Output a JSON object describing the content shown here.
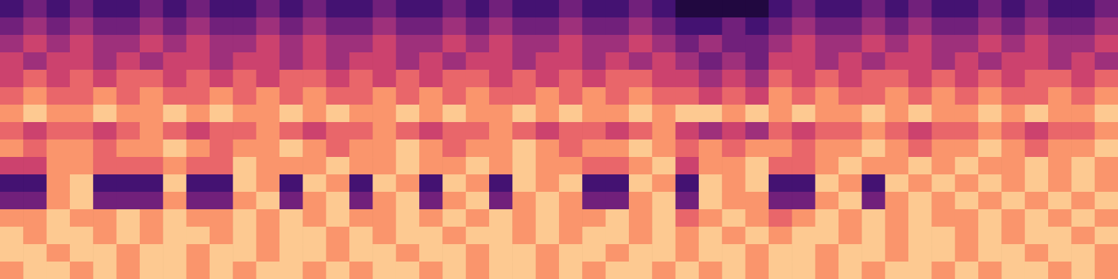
{
  "chart_data": {
    "type": "heatmap",
    "tick_labels": false,
    "xlim": [
      0,
      48
    ],
    "ylim": [
      0,
      16
    ],
    "zlim": [
      0,
      9
    ],
    "cells": [
      [
        2,
        3,
        2,
        3,
        2,
        2,
        3,
        2,
        3,
        2,
        2,
        3,
        2,
        3,
        2,
        2,
        3,
        2,
        2,
        3,
        2,
        3,
        2,
        2,
        3,
        2,
        2,
        3,
        2,
        1,
        1,
        1,
        1,
        2,
        3,
        2,
        2,
        3,
        2,
        3,
        2,
        2,
        3,
        2,
        3,
        2,
        2,
        3
      ],
      [
        3,
        4,
        3,
        4,
        3,
        3,
        4,
        3,
        4,
        3,
        3,
        4,
        3,
        4,
        3,
        3,
        4,
        3,
        3,
        4,
        3,
        4,
        3,
        3,
        4,
        3,
        3,
        4,
        3,
        2,
        2,
        3,
        2,
        3,
        4,
        3,
        3,
        4,
        3,
        4,
        3,
        3,
        4,
        3,
        4,
        3,
        3,
        4
      ],
      [
        4,
        5,
        4,
        5,
        4,
        4,
        5,
        4,
        5,
        4,
        4,
        5,
        4,
        5,
        4,
        4,
        5,
        4,
        4,
        5,
        4,
        5,
        4,
        4,
        5,
        4,
        4,
        5,
        4,
        3,
        4,
        3,
        3,
        4,
        5,
        4,
        4,
        5,
        4,
        5,
        4,
        4,
        5,
        4,
        5,
        4,
        4,
        5
      ],
      [
        5,
        4,
        5,
        5,
        4,
        5,
        4,
        5,
        5,
        4,
        5,
        5,
        4,
        5,
        4,
        5,
        5,
        4,
        5,
        4,
        5,
        5,
        4,
        5,
        5,
        4,
        5,
        4,
        5,
        4,
        3,
        4,
        3,
        5,
        5,
        4,
        5,
        4,
        5,
        5,
        4,
        5,
        4,
        5,
        5,
        4,
        5,
        4
      ],
      [
        5,
        6,
        5,
        6,
        5,
        6,
        6,
        5,
        6,
        5,
        6,
        5,
        6,
        6,
        5,
        6,
        5,
        6,
        5,
        6,
        6,
        5,
        6,
        5,
        6,
        5,
        6,
        6,
        5,
        5,
        4,
        5,
        4,
        6,
        5,
        6,
        5,
        6,
        6,
        5,
        6,
        5,
        6,
        5,
        6,
        6,
        5,
        6
      ],
      [
        6,
        7,
        6,
        6,
        7,
        6,
        7,
        6,
        6,
        7,
        6,
        7,
        6,
        7,
        6,
        6,
        7,
        6,
        7,
        6,
        7,
        6,
        6,
        7,
        6,
        7,
        6,
        7,
        6,
        6,
        5,
        6,
        5,
        7,
        6,
        7,
        6,
        6,
        7,
        6,
        7,
        6,
        7,
        6,
        6,
        7,
        6,
        7
      ],
      [
        7,
        8,
        7,
        7,
        8,
        7,
        7,
        8,
        7,
        8,
        7,
        7,
        8,
        7,
        8,
        7,
        7,
        8,
        7,
        8,
        7,
        7,
        8,
        7,
        8,
        7,
        7,
        8,
        7,
        8,
        8,
        7,
        8,
        7,
        8,
        7,
        7,
        8,
        7,
        8,
        7,
        7,
        8,
        7,
        8,
        7,
        7,
        8
      ],
      [
        6,
        5,
        6,
        6,
        5,
        6,
        7,
        6,
        5,
        6,
        6,
        7,
        6,
        5,
        6,
        6,
        7,
        6,
        5,
        6,
        6,
        7,
        6,
        5,
        6,
        6,
        5,
        6,
        7,
        5,
        4,
        5,
        4,
        6,
        5,
        6,
        6,
        7,
        6,
        5,
        6,
        6,
        7,
        6,
        5,
        6,
        6,
        7
      ],
      [
        7,
        6,
        7,
        7,
        6,
        7,
        7,
        8,
        7,
        6,
        7,
        7,
        8,
        7,
        6,
        7,
        7,
        8,
        7,
        6,
        7,
        7,
        8,
        7,
        6,
        7,
        7,
        8,
        7,
        6,
        7,
        6,
        7,
        7,
        6,
        7,
        7,
        8,
        7,
        6,
        7,
        7,
        8,
        7,
        6,
        7,
        7,
        8
      ],
      [
        5,
        5,
        7,
        7,
        6,
        6,
        6,
        7,
        6,
        6,
        8,
        7,
        7,
        7,
        8,
        7,
        7,
        8,
        7,
        7,
        8,
        7,
        8,
        7,
        7,
        6,
        6,
        7,
        8,
        5,
        7,
        7,
        8,
        6,
        6,
        7,
        8,
        7,
        7,
        8,
        7,
        8,
        7,
        7,
        8,
        7,
        8,
        7
      ],
      [
        2,
        2,
        7,
        8,
        2,
        2,
        2,
        8,
        2,
        2,
        8,
        7,
        2,
        8,
        7,
        2,
        8,
        7,
        2,
        8,
        7,
        2,
        8,
        7,
        8,
        2,
        2,
        8,
        7,
        2,
        8,
        7,
        8,
        2,
        2,
        8,
        7,
        2,
        8,
        7,
        8,
        7,
        8,
        7,
        8,
        7,
        8,
        7
      ],
      [
        3,
        3,
        7,
        8,
        3,
        3,
        3,
        7,
        3,
        3,
        7,
        8,
        3,
        7,
        8,
        3,
        7,
        8,
        3,
        7,
        8,
        3,
        7,
        8,
        7,
        3,
        3,
        7,
        8,
        3,
        8,
        7,
        7,
        3,
        3,
        7,
        8,
        3,
        7,
        8,
        7,
        8,
        7,
        8,
        7,
        8,
        7,
        8
      ],
      [
        7,
        7,
        8,
        7,
        7,
        8,
        7,
        8,
        7,
        7,
        8,
        7,
        8,
        7,
        8,
        7,
        7,
        8,
        7,
        8,
        7,
        8,
        7,
        8,
        7,
        7,
        8,
        7,
        8,
        6,
        7,
        8,
        7,
        6,
        7,
        8,
        7,
        8,
        7,
        8,
        7,
        7,
        8,
        7,
        8,
        7,
        8,
        7
      ],
      [
        8,
        7,
        8,
        8,
        7,
        8,
        7,
        8,
        8,
        7,
        8,
        7,
        8,
        8,
        7,
        8,
        7,
        8,
        8,
        7,
        8,
        8,
        7,
        8,
        7,
        8,
        8,
        7,
        8,
        7,
        8,
        7,
        8,
        7,
        8,
        8,
        7,
        8,
        7,
        8,
        8,
        7,
        8,
        7,
        8,
        8,
        7,
        8
      ],
      [
        8,
        8,
        7,
        8,
        8,
        7,
        8,
        8,
        7,
        8,
        8,
        7,
        8,
        8,
        7,
        8,
        8,
        7,
        8,
        8,
        7,
        8,
        8,
        7,
        8,
        8,
        7,
        8,
        8,
        7,
        8,
        8,
        7,
        8,
        8,
        7,
        8,
        8,
        7,
        8,
        8,
        7,
        8,
        8,
        7,
        8,
        8,
        7
      ],
      [
        7,
        8,
        8,
        7,
        8,
        7,
        8,
        8,
        7,
        8,
        7,
        8,
        8,
        7,
        8,
        7,
        8,
        8,
        7,
        8,
        7,
        8,
        8,
        7,
        8,
        7,
        8,
        8,
        7,
        8,
        7,
        8,
        7,
        8,
        8,
        7,
        8,
        7,
        8,
        8,
        7,
        8,
        7,
        8,
        8,
        7,
        8,
        7
      ]
    ]
  }
}
